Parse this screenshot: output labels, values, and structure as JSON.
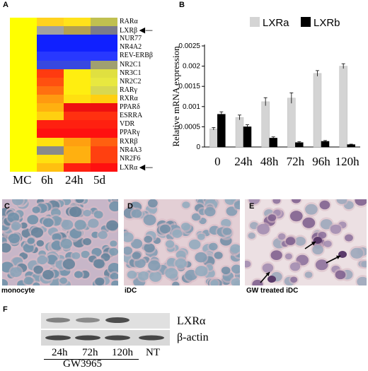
{
  "panel_a": {
    "letter": "A",
    "rows": [
      {
        "label": "RARα",
        "colors": [
          "#ffff00",
          "#ffd21e",
          "#ffe21a",
          "#c0c050"
        ],
        "arrow": false
      },
      {
        "label": "LXRβ",
        "colors": [
          "#ffff00",
          "#a0a0a0",
          "#b4a050",
          "#7b7b8a"
        ],
        "arrow": true
      },
      {
        "label": "NUR77",
        "colors": [
          "#ffff00",
          "#1020ff",
          "#1020ff",
          "#1020ff"
        ],
        "arrow": false
      },
      {
        "label": "NR4A2",
        "colors": [
          "#ffff00",
          "#1020ff",
          "#1020ff",
          "#1020ff"
        ],
        "arrow": false
      },
      {
        "label": "REV-ERBβ",
        "colors": [
          "#ffff00",
          "#2838ff",
          "#2838ff",
          "#2838ff"
        ],
        "arrow": false
      },
      {
        "label": "NR2C1",
        "colors": [
          "#ffff00",
          "#3848e0",
          "#3848e0",
          "#a0a070"
        ],
        "arrow": false
      },
      {
        "label": "NR3C1",
        "colors": [
          "#ffff00",
          "#ff3a10",
          "#ffee10",
          "#e0e040"
        ],
        "arrow": false
      },
      {
        "label": "NR2C2",
        "colors": [
          "#ffff00",
          "#ff5010",
          "#ffee10",
          "#e8e840"
        ],
        "arrow": false
      },
      {
        "label": "RARγ",
        "colors": [
          "#ffff00",
          "#ff7010",
          "#ffee10",
          "#d8d850"
        ],
        "arrow": false
      },
      {
        "label": "RXRα",
        "colors": [
          "#ffff00",
          "#ff9a10",
          "#ffe010",
          "#ffd010"
        ],
        "arrow": false
      },
      {
        "label": "PPARδ",
        "colors": [
          "#ffff00",
          "#ffb010",
          "#ee1010",
          "#ee1010"
        ],
        "arrow": false
      },
      {
        "label": "ESRRA",
        "colors": [
          "#ffff00",
          "#ffd010",
          "#ff3010",
          "#ff3010"
        ],
        "arrow": false
      },
      {
        "label": "VDR",
        "colors": [
          "#ffff00",
          "#ff2010",
          "#ff2010",
          "#ff2010"
        ],
        "arrow": false
      },
      {
        "label": "PPARγ",
        "colors": [
          "#ffff00",
          "#ff1010",
          "#ff1010",
          "#ff1010"
        ],
        "arrow": false
      },
      {
        "label": "RXRβ",
        "colors": [
          "#ffff00",
          "#ffe010",
          "#ffa010",
          "#ff6010"
        ],
        "arrow": false
      },
      {
        "label": "NR4A3",
        "colors": [
          "#ffff00",
          "#8a8a8a",
          "#ffb010",
          "#ff4010"
        ],
        "arrow": false
      },
      {
        "label": "NR2F6",
        "colors": [
          "#ffff00",
          "#ffe010",
          "#ffb010",
          "#ff4010"
        ],
        "arrow": false
      },
      {
        "label": "LXRα",
        "colors": [
          "#ffff00",
          "#ffc010",
          "#ff2010",
          "#ff1010"
        ],
        "arrow": true
      }
    ],
    "columns": [
      "MC",
      "6h",
      "24h",
      "5d"
    ]
  },
  "panel_b": {
    "letter": "B",
    "chart_data": {
      "type": "bar",
      "ylabel": "Relative mRNA expression",
      "ylim": [
        0,
        0.0025
      ],
      "yticks": [
        "0",
        "0.0005",
        "0.001",
        "0.0015",
        "0.002",
        "0.0025"
      ],
      "categories": [
        "0",
        "24h",
        "48h",
        "72h",
        "96h",
        "120h"
      ],
      "legend_position": "top-right",
      "series": [
        {
          "name": "LXRa",
          "color": "#d4d4d4",
          "values": [
            0.00045,
            0.00073,
            0.00112,
            0.00121,
            0.00182,
            0.002
          ],
          "errors": [
            3e-05,
            6e-05,
            0.0001,
            0.00013,
            7e-05,
            6e-05
          ]
        },
        {
          "name": "LXRb",
          "color": "#000000",
          "values": [
            0.00081,
            0.0005,
            0.00022,
            0.00011,
            0.00014,
            6e-05
          ],
          "errors": [
            6e-05,
            5e-05,
            3e-05,
            2e-05,
            2e-05,
            1e-05
          ]
        }
      ]
    }
  },
  "panel_c": {
    "letter": "C",
    "caption": "monocyte"
  },
  "panel_d": {
    "letter": "D",
    "caption": "iDC"
  },
  "panel_e": {
    "letter": "E",
    "caption": "GW treated iDC"
  },
  "panel_f": {
    "letter": "F",
    "bands": [
      "LXRα",
      "β-actin"
    ],
    "lanes": [
      "24h",
      "72h",
      "120h",
      "NT"
    ],
    "treatment": "GW3965"
  }
}
